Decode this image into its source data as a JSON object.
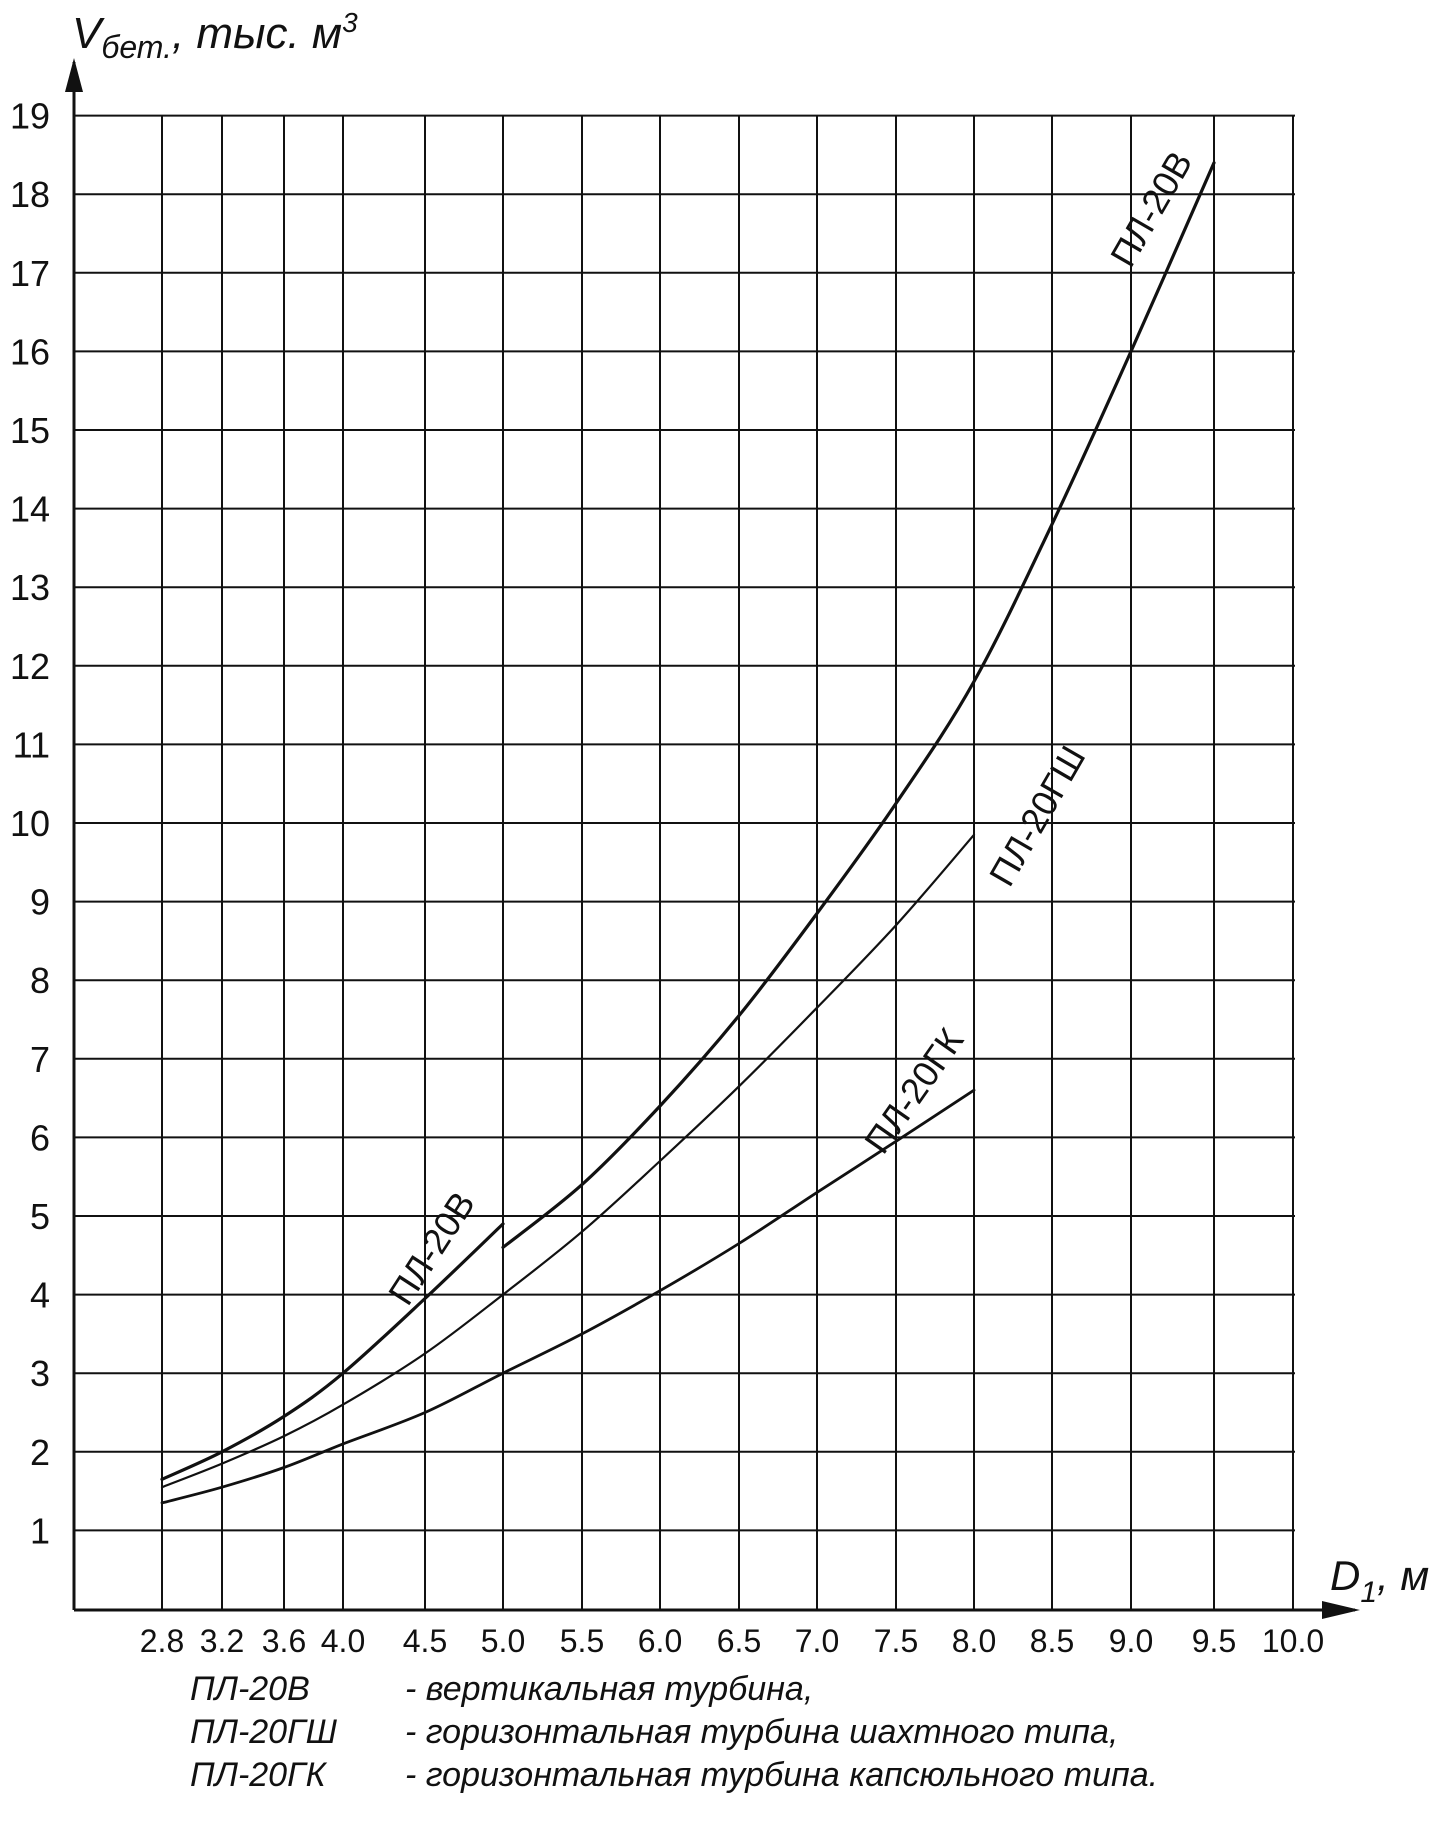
{
  "chart_data": {
    "type": "line",
    "ylabel": {
      "main": "V",
      "sub": "бет.",
      "rest": ", тыс. м",
      "sup": "3"
    },
    "xlabel": {
      "main": "D",
      "sub": "1",
      "rest": ", м"
    },
    "y_ticks": [
      1,
      2,
      3,
      4,
      5,
      6,
      7,
      8,
      9,
      10,
      11,
      12,
      13,
      14,
      15,
      16,
      17,
      18,
      19
    ],
    "x_ticks": [
      "2.8",
      "3.2",
      "3.6",
      "4.0",
      "4.5",
      "5.0",
      "5.5",
      "6.0",
      "6.5",
      "7.0",
      "7.5",
      "8.0",
      "8.5",
      "9.0",
      "9.5",
      "10.0"
    ],
    "ylim": [
      0,
      19.5
    ],
    "grid": true,
    "series": [
      {
        "name": "ПЛ-20В",
        "segments": [
          {
            "x": [
              "2.8",
              "3.2",
              "3.6",
              "4.0",
              "4.5",
              "5.0"
            ],
            "y": [
              1.65,
              2.0,
              2.45,
              3.0,
              3.95,
              4.9
            ]
          },
          {
            "x": [
              "5.0",
              "5.5",
              "6.0",
              "6.5",
              "7.0",
              "7.5",
              "8.0",
              "8.5",
              "9.0",
              "9.5"
            ],
            "y": [
              4.6,
              5.4,
              6.4,
              7.55,
              8.85,
              10.25,
              11.8,
              13.8,
              16.0,
              18.4
            ]
          }
        ]
      },
      {
        "name": "ПЛ-20ГШ",
        "segments": [
          {
            "x": [
              "2.8",
              "3.2",
              "3.6",
              "4.0",
              "4.5",
              "5.0",
              "5.5",
              "6.0",
              "6.5",
              "7.0",
              "7.5",
              "8.0"
            ],
            "y": [
              1.55,
              1.85,
              2.2,
              2.6,
              3.25,
              4.0,
              4.8,
              5.7,
              6.65,
              7.65,
              8.7,
              9.85
            ]
          }
        ]
      },
      {
        "name": "ПЛ-20ГК",
        "segments": [
          {
            "x": [
              "2.8",
              "3.2",
              "3.6",
              "4.0",
              "4.5",
              "5.0",
              "5.5",
              "6.0",
              "6.5",
              "7.0",
              "7.5",
              "8.0"
            ],
            "y": [
              1.35,
              1.55,
              1.8,
              2.1,
              2.5,
              3.0,
              3.5,
              4.05,
              4.65,
              5.3,
              5.95,
              6.6
            ]
          }
        ]
      }
    ],
    "curve_labels": [
      {
        "text": "ПЛ-20В",
        "series": "ПЛ-20В"
      },
      {
        "text": "ПЛ-20В",
        "series": "ПЛ-20В"
      },
      {
        "text": "ПЛ-20ГШ",
        "series": "ПЛ-20ГШ"
      },
      {
        "text": "ПЛ-20ГК",
        "series": "ПЛ-20ГК"
      }
    ],
    "legend": [
      {
        "name": "ПЛ-20В",
        "desc": "- вертикальная турбина,"
      },
      {
        "name": "ПЛ-20ГШ",
        "desc": "- горизонтальная турбина шахтного типа,"
      },
      {
        "name": "ПЛ-20ГК",
        "desc": "- горизонтальная турбина капсюльного типа."
      }
    ],
    "colors": {
      "ink": "#111111",
      "background": "#ffffff"
    }
  }
}
